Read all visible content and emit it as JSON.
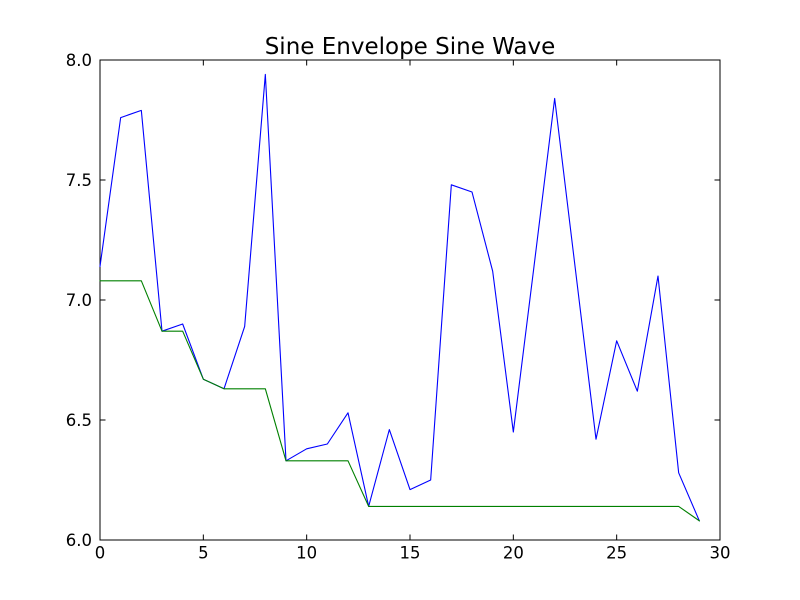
{
  "figure": {
    "background": "#ffffff"
  },
  "chart_data": {
    "type": "line",
    "title": "Sine Envelope Sine Wave",
    "xlabel": "",
    "ylabel": "",
    "grid": false,
    "legend": "none",
    "xlim": [
      0,
      30
    ],
    "ylim": [
      6.0,
      8.0
    ],
    "xticks": [
      0,
      5,
      10,
      15,
      20,
      25,
      30
    ],
    "xtick_labels": [
      "0",
      "5",
      "10",
      "15",
      "20",
      "25",
      "30"
    ],
    "yticks": [
      6.0,
      6.5,
      7.0,
      7.5,
      8.0
    ],
    "ytick_labels": [
      "6.0",
      "6.5",
      "7.0",
      "7.5",
      "8.0"
    ],
    "x": [
      0,
      1,
      2,
      3,
      4,
      5,
      6,
      7,
      8,
      9,
      10,
      11,
      12,
      13,
      14,
      15,
      16,
      17,
      18,
      19,
      20,
      21,
      22,
      23,
      24,
      25,
      26,
      27,
      28,
      29
    ],
    "series": [
      {
        "name": "blue-series",
        "color": "#0000ff",
        "values": [
          7.14,
          7.76,
          7.79,
          6.87,
          6.9,
          6.67,
          6.63,
          6.89,
          7.94,
          6.33,
          6.38,
          6.4,
          6.53,
          6.14,
          6.46,
          6.21,
          6.25,
          7.48,
          7.45,
          7.12,
          6.45,
          7.14,
          7.84,
          7.13,
          6.42,
          6.83,
          6.62,
          7.1,
          6.28,
          6.08
        ]
      },
      {
        "name": "green-series",
        "color": "#008000",
        "values": [
          7.08,
          7.08,
          7.08,
          6.87,
          6.87,
          6.67,
          6.63,
          6.63,
          6.63,
          6.33,
          6.33,
          6.33,
          6.33,
          6.14,
          6.14,
          6.14,
          6.14,
          6.14,
          6.14,
          6.14,
          6.14,
          6.14,
          6.14,
          6.14,
          6.14,
          6.14,
          6.14,
          6.14,
          6.14,
          6.08
        ]
      }
    ]
  }
}
